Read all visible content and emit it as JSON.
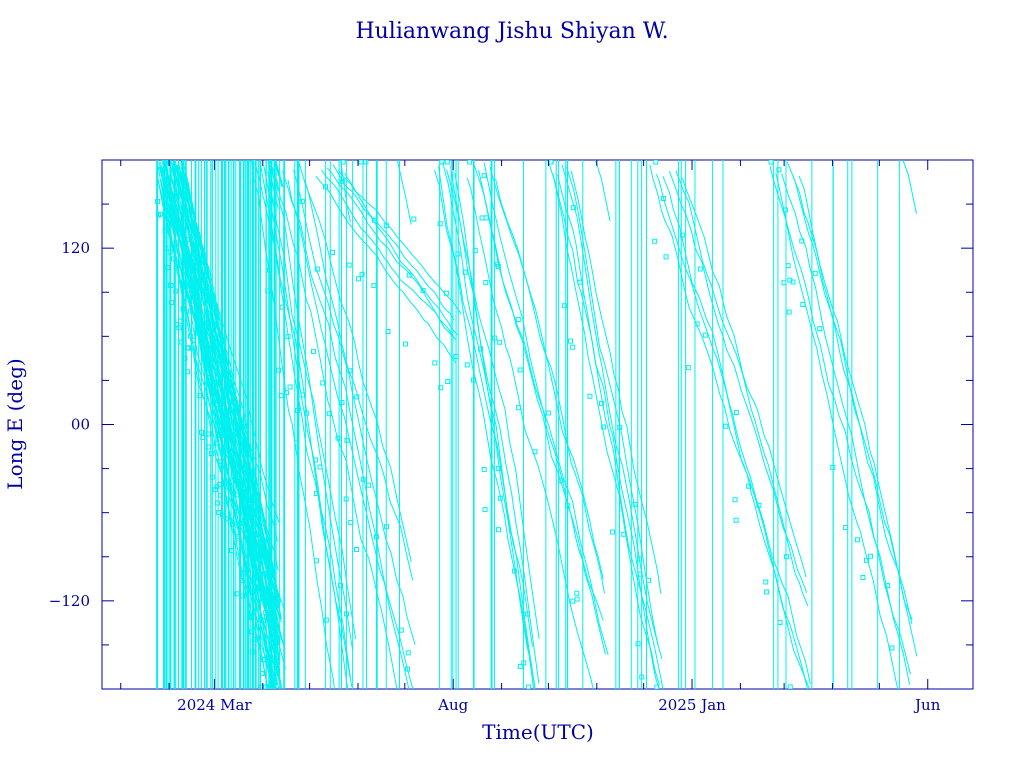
{
  "chart_data": {
    "type": "line",
    "title": "Hulianwang Jishu Shiyan W.",
    "xlabel": "Time(UTC)",
    "ylabel": "Long E (deg)",
    "x_axis": {
      "type": "date",
      "range": [
        "2023-12-20",
        "2025-06-30"
      ],
      "tick_labels": [
        {
          "date": "2024-03-01",
          "label": "2024 Mar"
        },
        {
          "date": "2024-08-01",
          "label": "Aug"
        },
        {
          "date": "2025-01-01",
          "label": "2025 Jan"
        },
        {
          "date": "2025-06-01",
          "label": "Jun"
        }
      ]
    },
    "y_axis": {
      "range": [
        -180,
        180
      ],
      "tick_values": [
        -120,
        0,
        120
      ],
      "tick_labels": [
        "−120",
        "00",
        "120"
      ]
    },
    "grid": false,
    "colors": {
      "series": "#00f0f0",
      "axes": "#0000a0",
      "background": "#ffffff"
    },
    "series": [
      {
        "data_start": "2024-01-24",
        "data_end": "2025-05-20",
        "description_of_pattern": "longitude drifting westward and wrapping at ±180",
        "segments": [
          {
            "x": [
              "2024-01-24",
              "2024-04-10"
            ],
            "y": [
              180,
              -180
            ],
            "wraps": 14
          },
          {
            "x": [
              "2024-03-25",
              "2024-05-25"
            ],
            "y": [
              180,
              -180
            ],
            "wraps": 1
          },
          {
            "x": [
              "2024-04-10",
              "2024-07-05"
            ],
            "y": [
              180,
              -180
            ],
            "wraps": 1
          },
          {
            "x": [
              "2024-05-05",
              "2024-08-01"
            ],
            "y": [
              180,
              60
            ],
            "wraps": 0
          },
          {
            "x": [
              "2024-07-20",
              "2024-09-20"
            ],
            "y": [
              180,
              -180
            ],
            "wraps": 1
          },
          {
            "x": [
              "2024-08-10",
              "2024-11-05"
            ],
            "y": [
              180,
              -180
            ],
            "wraps": 1
          },
          {
            "x": [
              "2024-10-01",
              "2024-12-10"
            ],
            "y": [
              180,
              -180
            ],
            "wraps": 1
          },
          {
            "x": [
              "2024-12-05",
              "2025-03-15"
            ],
            "y": [
              180,
              -180
            ],
            "wraps": 1
          },
          {
            "x": [
              "2025-02-20",
              "2025-05-20"
            ],
            "y": [
              180,
              -180
            ],
            "wraps": 1
          }
        ]
      }
    ]
  }
}
